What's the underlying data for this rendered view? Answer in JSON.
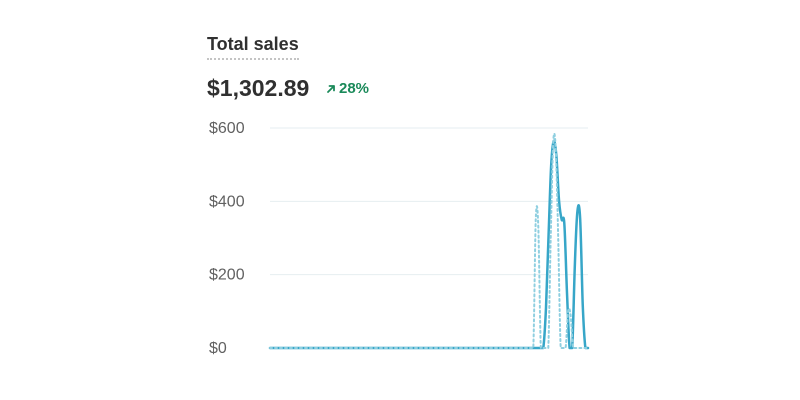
{
  "header": {
    "title": "Total sales",
    "total": "$1,302.89",
    "change": "28%",
    "change_icon": "arrow-up-right-icon",
    "change_color": "#1b8a5a"
  },
  "chart_data": {
    "type": "line",
    "ylim": [
      0,
      600
    ],
    "yticks": [
      0,
      200,
      400,
      600
    ],
    "ytick_labels": [
      "$0",
      "$200",
      "$400",
      "$600"
    ],
    "grid": true,
    "series": [
      {
        "style": "solid",
        "color": "#37a6c8",
        "values": [
          0,
          0,
          0,
          0,
          0,
          0,
          0,
          0,
          0,
          0,
          0,
          0,
          0,
          0,
          0,
          0,
          0,
          0,
          0,
          0,
          0,
          0,
          0,
          0,
          0,
          0,
          0,
          0,
          0,
          0,
          0,
          0,
          0,
          0,
          0,
          0,
          0,
          0,
          0,
          0,
          0,
          0,
          0,
          0,
          0,
          0,
          0,
          0,
          0,
          0,
          0,
          0,
          0,
          0,
          0,
          0,
          0,
          0,
          0,
          0,
          0,
          0,
          0,
          0,
          0,
          0,
          0,
          0,
          0,
          0,
          0,
          0,
          0,
          0,
          0,
          0,
          0,
          0,
          0,
          0,
          0,
          0,
          0,
          0,
          0,
          0,
          0,
          0,
          0,
          0,
          0,
          0,
          0,
          0,
          0,
          0,
          0,
          0,
          0,
          0,
          0,
          0,
          0,
          0,
          0,
          110,
          310,
          500,
          565,
          520,
          400,
          350,
          340,
          150,
          0,
          0,
          230,
          375,
          355,
          120,
          0,
          0
        ]
      },
      {
        "style": "dotted",
        "color": "#8fcfe0",
        "values": [
          0,
          0,
          0,
          0,
          0,
          0,
          0,
          0,
          0,
          0,
          0,
          0,
          0,
          0,
          0,
          0,
          0,
          0,
          0,
          0,
          0,
          0,
          0,
          0,
          0,
          0,
          0,
          0,
          0,
          0,
          0,
          0,
          0,
          0,
          0,
          0,
          0,
          0,
          0,
          0,
          0,
          0,
          0,
          0,
          0,
          0,
          0,
          0,
          0,
          0,
          0,
          0,
          0,
          0,
          0,
          0,
          0,
          0,
          0,
          0,
          0,
          0,
          0,
          0,
          0,
          0,
          0,
          0,
          0,
          0,
          0,
          0,
          0,
          0,
          0,
          0,
          0,
          0,
          0,
          0,
          0,
          0,
          0,
          0,
          0,
          0,
          0,
          0,
          0,
          0,
          0,
          0,
          0,
          0,
          0,
          0,
          0,
          0,
          0,
          0,
          0,
          0,
          0,
          0,
          0,
          0,
          0,
          355,
          330,
          0,
          0,
          0,
          0,
          300,
          560,
          545,
          300,
          0,
          0,
          0,
          100,
          90,
          0,
          0,
          0,
          0,
          0,
          0,
          0
        ]
      }
    ]
  }
}
